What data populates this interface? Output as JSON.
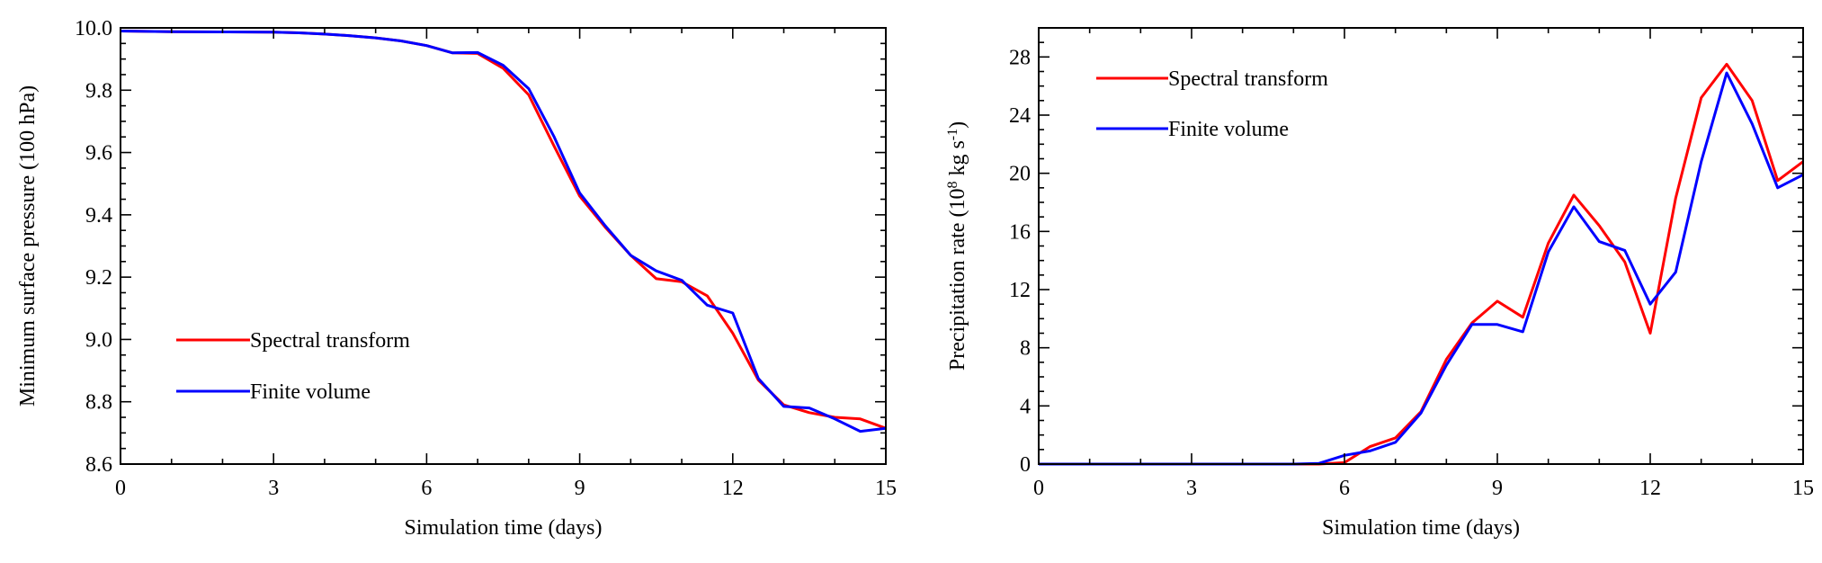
{
  "chart_data": [
    {
      "type": "line",
      "xlabel": "Simulation time (days)",
      "ylabel": "Minimum surface pressure (100 hPa)",
      "xlim": [
        0,
        15
      ],
      "ylim": [
        8.6,
        10.0
      ],
      "xticks": [
        0,
        3,
        6,
        9,
        12,
        15
      ],
      "xtick_labels": [
        "0",
        "3",
        "6",
        "9",
        "12",
        "15"
      ],
      "yticks": [
        8.6,
        8.8,
        9.0,
        9.2,
        9.4,
        9.6,
        9.8,
        10.0
      ],
      "ytick_labels": [
        "8.6",
        "8.8",
        "9.0",
        "9.2",
        "9.4",
        "9.6",
        "9.8",
        "10.0"
      ],
      "grid": false,
      "legend_placement": "lower-left",
      "series": [
        {
          "name": "Spectral transform",
          "color": "#ff0000",
          "x": [
            0,
            1,
            2,
            3,
            3.5,
            4,
            4.5,
            5,
            5.5,
            6,
            6.5,
            7,
            7.5,
            8,
            8.5,
            9,
            9.5,
            10,
            10.5,
            11,
            11.5,
            12,
            12.5,
            13,
            13.5,
            14,
            14.5,
            15
          ],
          "y": [
            9.99,
            9.988,
            9.987,
            9.986,
            9.984,
            9.98,
            9.975,
            9.968,
            9.958,
            9.943,
            9.92,
            9.918,
            9.87,
            9.785,
            9.62,
            9.46,
            9.36,
            9.27,
            9.195,
            9.185,
            9.14,
            9.02,
            8.87,
            8.79,
            8.765,
            8.75,
            8.745,
            8.715
          ]
        },
        {
          "name": "Finite volume",
          "color": "#0000ff",
          "x": [
            0,
            1,
            2,
            3,
            3.5,
            4,
            4.5,
            5,
            5.5,
            6,
            6.5,
            7,
            7.5,
            8,
            8.5,
            9,
            9.5,
            10,
            10.5,
            11,
            11.5,
            12,
            12.5,
            13,
            13.5,
            14,
            14.5,
            15
          ],
          "y": [
            9.99,
            9.988,
            9.987,
            9.986,
            9.984,
            9.98,
            9.975,
            9.968,
            9.958,
            9.943,
            9.92,
            9.921,
            9.88,
            9.805,
            9.65,
            9.47,
            9.365,
            9.27,
            9.22,
            9.19,
            9.11,
            9.085,
            8.875,
            8.785,
            8.78,
            8.745,
            8.705,
            8.715
          ]
        }
      ]
    },
    {
      "type": "line",
      "xlabel": "Simulation time (days)",
      "ylabel": "Precipitation rate (10⁸ kg s⁻¹)",
      "ylabel_parts": [
        "Precipitation rate (10",
        "8",
        " kg s",
        "-1",
        ")"
      ],
      "xlim": [
        0,
        15
      ],
      "ylim": [
        0,
        30
      ],
      "xticks": [
        0,
        3,
        6,
        9,
        12,
        15
      ],
      "xtick_labels": [
        "0",
        "3",
        "6",
        "9",
        "12",
        "15"
      ],
      "yticks": [
        0,
        4,
        8,
        12,
        16,
        20,
        24,
        28
      ],
      "ytick_labels": [
        "0",
        "4",
        "8",
        "12",
        "16",
        "20",
        "24",
        "28"
      ],
      "grid": false,
      "legend_placement": "top-left",
      "series": [
        {
          "name": "Spectral transform",
          "color": "#ff0000",
          "x": [
            0,
            1,
            2,
            3,
            4,
            5,
            5.5,
            6,
            6.5,
            7,
            7.5,
            8,
            8.5,
            9,
            9.5,
            10,
            10.5,
            11,
            11.5,
            12,
            12.5,
            13,
            13.5,
            14,
            14.5,
            15
          ],
          "y": [
            0,
            0,
            0,
            0,
            0,
            0,
            0,
            0.1,
            1.2,
            1.8,
            3.6,
            7.2,
            9.7,
            11.2,
            10.1,
            15.2,
            18.5,
            16.4,
            13.9,
            9.0,
            18.3,
            25.2,
            27.5,
            25.0,
            19.5,
            20.8
          ]
        },
        {
          "name": "Finite volume",
          "color": "#0000ff",
          "x": [
            0,
            1,
            2,
            3,
            4,
            5,
            5.5,
            6,
            6.5,
            7,
            7.5,
            8,
            8.5,
            9,
            9.5,
            10,
            10.5,
            11,
            11.5,
            12,
            12.5,
            13,
            13.5,
            14,
            14.5,
            15
          ],
          "y": [
            0,
            0,
            0,
            0,
            0,
            0,
            0.05,
            0.6,
            0.9,
            1.5,
            3.5,
            6.8,
            9.6,
            9.6,
            9.1,
            14.6,
            17.7,
            15.3,
            14.7,
            11.0,
            13.2,
            20.8,
            26.9,
            23.4,
            19.0,
            19.9
          ]
        }
      ]
    }
  ]
}
